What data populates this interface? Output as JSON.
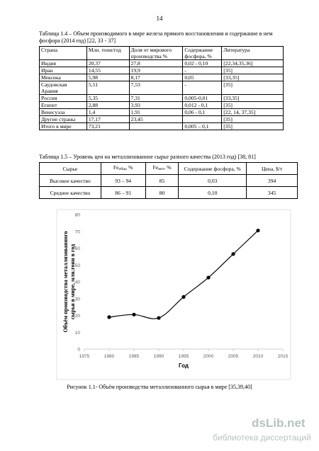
{
  "page_number": "14",
  "table1": {
    "caption": "Таблица 1.4 – Объем производимого в мире железа прямого восстановления и содержание в нем фосфора (2014 год) [22, 33 - 37]",
    "header": [
      "Страна",
      "Млн. тонн/год",
      "Доля от мирового производства %",
      "Содержание фосфора, %",
      "Литература"
    ],
    "rows": [
      [
        "Индия",
        "20,37",
        "27,8",
        "0,02 - 0,10",
        "[22,34,35,36]"
      ],
      [
        "Иран",
        "14,55",
        "19,9",
        "-",
        "[35]"
      ],
      [
        "Мексика",
        "5,98",
        "8,17",
        "0,05",
        "[33,35]"
      ],
      [
        "Саудовская Аравия",
        "5,51",
        "7,53",
        "-",
        "[35]"
      ],
      [
        "Россия",
        "5,35",
        "7,31",
        "0,005-0,01",
        "[33,35]"
      ],
      [
        "Египет",
        "2,88",
        "3,93",
        "0,012 - 0,1",
        "[35]"
      ],
      [
        "Венесуэла",
        "1,4",
        "1,91",
        "0,06 - 0,1",
        "[22, 14, 37,35]"
      ],
      [
        "Другие страны",
        "17,17",
        "23,45",
        null,
        "[35]"
      ],
      [
        "Итого в мире",
        "73,21",
        null,
        "0,005 – 0,1",
        "[35]"
      ]
    ]
  },
  "table2": {
    "caption": "Таблица 1.5 – Уровень цен на металлизованное сырье разного качества (2013 год) [38, 81]",
    "header": [
      "Сырье",
      {
        "text": "Fe",
        "sub": "общ",
        "rest": ", %"
      },
      {
        "text": "Fe",
        "sub": "мет",
        "rest": ", %"
      },
      "Содержание фосфора, %",
      "Цена, $/т"
    ],
    "rows": [
      [
        "Высокое качество",
        "93 – 94",
        "85",
        "0,03",
        "394"
      ],
      [
        "Среднее качество",
        "86 – 91",
        "80",
        "0,10",
        "345"
      ]
    ]
  },
  "chart_data": {
    "type": "line",
    "x": [
      1980,
      1985,
      1990,
      1995,
      2000,
      2005,
      2010
    ],
    "series": [
      {
        "color": "#000000",
        "values": [
          19,
          20.5,
          18.5,
          31,
          42.5,
          56.5,
          70.5
        ]
      }
    ],
    "xlim": [
      1975,
      2015
    ],
    "xticks": [
      1975,
      1980,
      1985,
      1990,
      1995,
      2000,
      2005,
      2010,
      2015
    ],
    "ylim": [
      0,
      80
    ],
    "yticks": [
      0,
      10,
      20,
      30,
      40,
      50,
      60,
      70,
      80
    ],
    "x_label": "Год",
    "y_label": [
      "Объём производства металлизованного",
      "сырья в мире, млн.тонн в год"
    ],
    "smooth": true,
    "marker": "circle",
    "grid": false
  },
  "figure_caption": "Рисунок 1.1- Объём производства металлизованного сырья в мире [35,39,40]",
  "watermark": {
    "logo": "dsLib.net",
    "subtitle": "библиотека диссертаций"
  }
}
